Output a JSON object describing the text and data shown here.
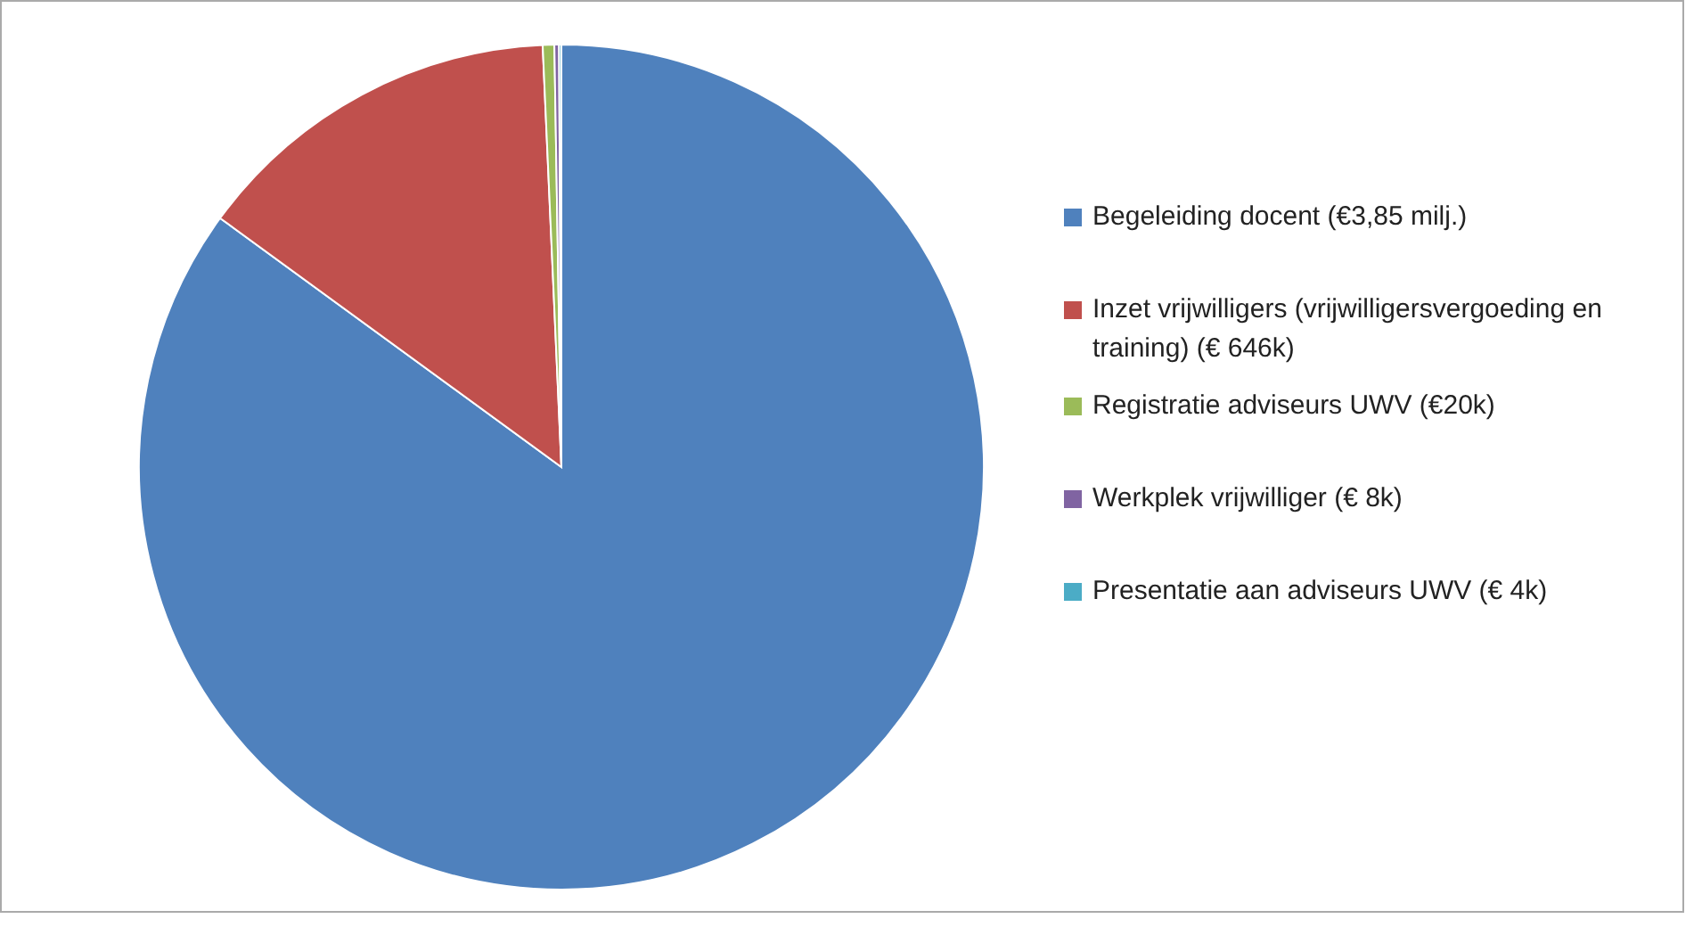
{
  "chart_data": {
    "type": "pie",
    "categories": [
      "Begeleiding docent (€3,85 milj.)",
      "Inzet vrijwilligers (vrijwilligersvergoeding en training) (€ 646k)",
      "Registratie adviseurs UWV (€20k)",
      "Werkplek vrijwilliger (€ 8k)",
      "Presentatie aan adviseurs UWV (€ 4k)"
    ],
    "values": [
      3850,
      646,
      20,
      8,
      4
    ],
    "colors": [
      "#4f81bd",
      "#c0504d",
      "#9bbb59",
      "#8064a2",
      "#4bacc6"
    ],
    "legend": "right"
  }
}
